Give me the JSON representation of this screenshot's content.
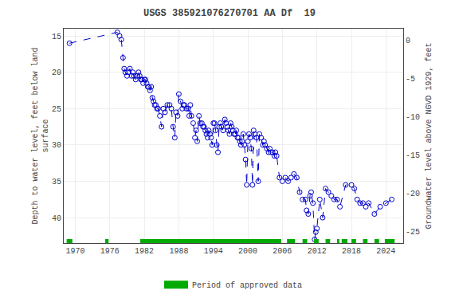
{
  "chart_data": {
    "type": "line",
    "title": "USGS 385921076270701 AA Df  19",
    "ylabel": "Depth to water level, feet below land\nsurface",
    "y2label": "Groundwater level above NGVD 1929, feet",
    "x": [
      1969.0,
      1977.3,
      1977.7,
      1978.0,
      1978.3,
      1978.5,
      1978.7,
      1979.0,
      1979.2,
      1979.5,
      1979.8,
      1980.0,
      1980.2,
      1980.5,
      1980.7,
      1981.0,
      1981.2,
      1981.4,
      1981.6,
      1981.8,
      1982.0,
      1982.2,
      1982.4,
      1982.6,
      1982.8,
      1983.0,
      1983.2,
      1983.4,
      1983.6,
      1983.8,
      1984.0,
      1984.2,
      1984.4,
      1984.7,
      1985.0,
      1985.3,
      1985.6,
      1986.0,
      1986.4,
      1986.7,
      1987.0,
      1987.3,
      1987.5,
      1987.8,
      1988.0,
      1988.3,
      1988.6,
      1988.8,
      1989.0,
      1989.3,
      1989.6,
      1989.8,
      1990.0,
      1990.2,
      1990.5,
      1990.8,
      1991.0,
      1991.2,
      1991.5,
      1991.7,
      1992.0,
      1992.2,
      1992.4,
      1992.6,
      1992.8,
      1993.0,
      1993.2,
      1993.4,
      1993.6,
      1993.8,
      1994.0,
      1994.2,
      1994.4,
      1994.6,
      1994.8,
      1995.0,
      1995.2,
      1995.4,
      1995.7,
      1996.0,
      1996.2,
      1996.4,
      1996.6,
      1996.8,
      1997.0,
      1997.2,
      1997.4,
      1997.6,
      1997.8,
      1998.0,
      1998.2,
      1998.4,
      1998.6,
      1998.8,
      1999.0,
      1999.2,
      1999.4,
      1999.6,
      1999.8,
      2000.0,
      2000.2,
      2000.4,
      2000.6,
      2000.8,
      2001.0,
      2001.2,
      2001.5,
      2001.8,
      2002.0,
      2002.3,
      2002.6,
      2002.8,
      2003.0,
      2003.3,
      2003.6,
      2003.8,
      2004.0,
      2004.3,
      2004.6,
      2004.8,
      2005.0,
      2005.5,
      2006.0,
      2006.5,
      2007.0,
      2007.5,
      2008.0,
      2008.5,
      2009.0,
      2009.5,
      2010.0,
      2010.2,
      2010.5,
      2010.8,
      2011.0,
      2011.3,
      2011.6,
      2011.8,
      2012.0,
      2012.5,
      2013.0,
      2013.5,
      2014.0,
      2014.5,
      2015.0,
      2015.5,
      2016.0,
      2017.0,
      2018.0,
      2018.5,
      2019.0,
      2019.5,
      2020.0,
      2020.5,
      2021.0,
      2022.0,
      2023.0,
      2024.0,
      2025.0
    ],
    "series": [
      {
        "color": "#0000cc",
        "line_style": "dashed",
        "marker": "circle-open",
        "values": [
          16.0,
          14.5,
          15.0,
          15.5,
          18.0,
          19.5,
          20.0,
          20.5,
          20.0,
          19.5,
          20.5,
          20.0,
          20.5,
          21.0,
          20.5,
          20.0,
          20.5,
          21.0,
          21.0,
          21.5,
          21.0,
          21.0,
          21.5,
          22.0,
          22.0,
          22.5,
          22.0,
          23.5,
          24.0,
          24.5,
          24.5,
          25.0,
          25.0,
          26.0,
          27.5,
          25.0,
          25.5,
          24.5,
          24.5,
          25.0,
          27.5,
          29.0,
          25.5,
          26.0,
          23.0,
          24.0,
          25.0,
          24.5,
          24.5,
          25.0,
          25.0,
          26.0,
          24.5,
          26.0,
          27.0,
          29.0,
          28.0,
          29.5,
          26.0,
          27.0,
          27.0,
          27.5,
          27.5,
          28.0,
          28.5,
          29.0,
          28.0,
          28.5,
          29.0,
          30.0,
          27.0,
          27.0,
          28.0,
          30.0,
          31.0,
          27.5,
          27.0,
          27.5,
          28.0,
          26.5,
          27.0,
          27.5,
          28.0,
          28.5,
          27.0,
          27.5,
          28.0,
          28.5,
          28.5,
          28.0,
          29.0,
          29.0,
          29.5,
          30.0,
          29.5,
          28.5,
          30.0,
          32.0,
          35.5,
          29.5,
          28.5,
          29.0,
          30.5,
          35.5,
          28.0,
          28.5,
          29.0,
          35.0,
          28.5,
          29.0,
          30.0,
          29.5,
          30.0,
          30.5,
          31.0,
          30.5,
          31.0,
          31.0,
          31.5,
          31.0,
          31.5,
          34.5,
          35.0,
          34.5,
          35.0,
          34.5,
          34.0,
          34.5,
          36.5,
          37.5,
          37.5,
          39.0,
          39.5,
          37.0,
          36.5,
          38.0,
          43.0,
          42.0,
          41.5,
          37.5,
          40.0,
          36.0,
          36.5,
          37.0,
          37.5,
          37.5,
          38.5,
          35.5,
          35.5,
          36.0,
          37.5,
          38.0,
          38.0,
          38.5,
          38.0,
          39.5,
          38.5,
          38.0,
          37.5
        ]
      },
      {
        "name": "Period of approved data",
        "type": "period",
        "color": "#00aa00",
        "periods": [
          [
            1968.5,
            1969.5
          ],
          [
            1975.2,
            1975.8
          ],
          [
            1981.3,
            2005.8
          ],
          [
            2006.8,
            2008.2
          ],
          [
            2009.5,
            2010.3
          ],
          [
            2011.5,
            2012.3
          ],
          [
            2013.5,
            2014.3
          ],
          [
            2015.5,
            2015.9
          ],
          [
            2016.3,
            2017.3
          ],
          [
            2018.0,
            2018.8
          ],
          [
            2020.0,
            2020.8
          ],
          [
            2022.0,
            2022.8
          ],
          [
            2023.8,
            2025.5
          ]
        ]
      }
    ],
    "xlim": [
      1968,
      2027
    ],
    "xticks": [
      1970,
      1976,
      1982,
      1988,
      1994,
      2000,
      2006,
      2012,
      2018,
      2024
    ],
    "ylim": [
      43.5,
      14.0
    ],
    "yticks": [
      15,
      20,
      25,
      30,
      35,
      40
    ],
    "y2lim": [
      -26.5,
      1.5
    ],
    "y2ticks": [
      0,
      -5,
      -10,
      -15,
      -20,
      -25
    ],
    "grid": true
  }
}
